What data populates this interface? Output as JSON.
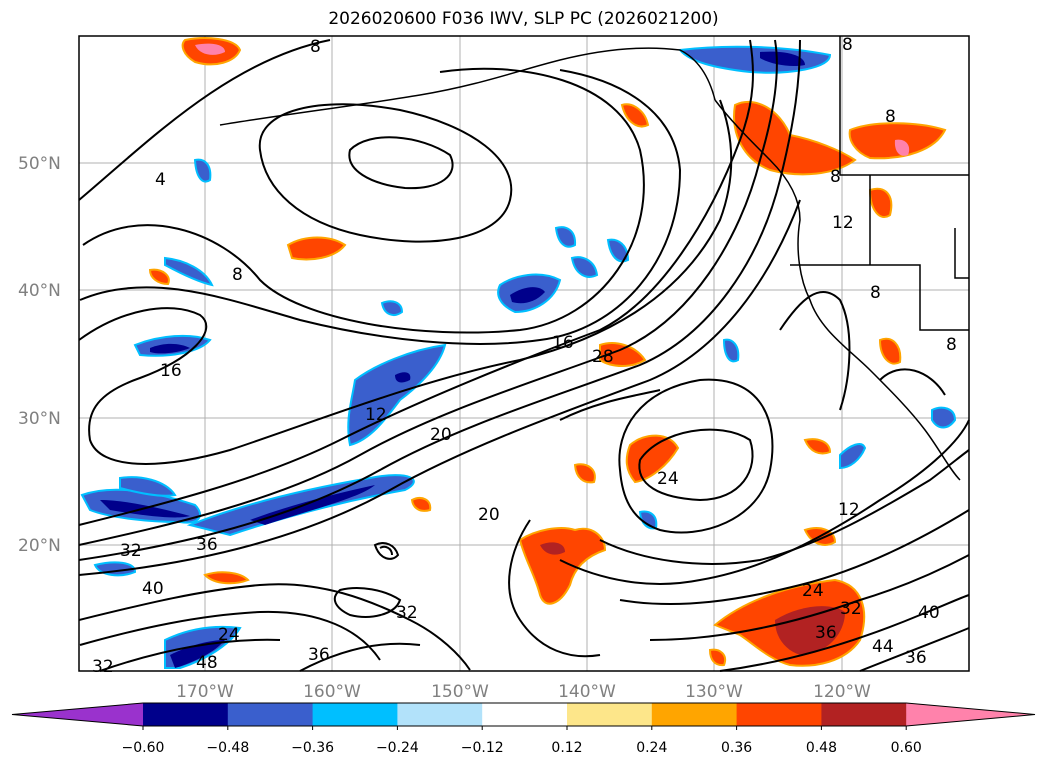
{
  "title": "2026020600 F036 IWV, SLP PC (2026021200)",
  "axes": {
    "lat_labels": [
      "50°N",
      "40°N",
      "30°N",
      "20°N"
    ],
    "lon_labels": [
      "170°W",
      "160°W",
      "150°W",
      "140°W",
      "130°W",
      "120°W"
    ]
  },
  "contour_labels": [
    "8",
    "8",
    "4",
    "8",
    "16",
    "16",
    "12",
    "20",
    "28",
    "24",
    "12",
    "8",
    "8",
    "8",
    "12",
    "20",
    "32",
    "36",
    "40",
    "32",
    "24",
    "48",
    "36",
    "32",
    "24",
    "32",
    "36",
    "40",
    "44",
    "36",
    "8"
  ],
  "colorbar": {
    "labels": [
      "−0.60",
      "−0.48",
      "−0.36",
      "−0.24",
      "−0.12",
      "0.12",
      "0.24",
      "0.36",
      "0.48",
      "0.60"
    ],
    "colors": [
      "#9a32cd",
      "#00008b",
      "#3a5fcd",
      "#00bfff",
      "#b2e2fa",
      "#ffffff",
      "#fde68a",
      "#ffa500",
      "#ff4500",
      "#b22222",
      "#ff82ab"
    ]
  }
}
